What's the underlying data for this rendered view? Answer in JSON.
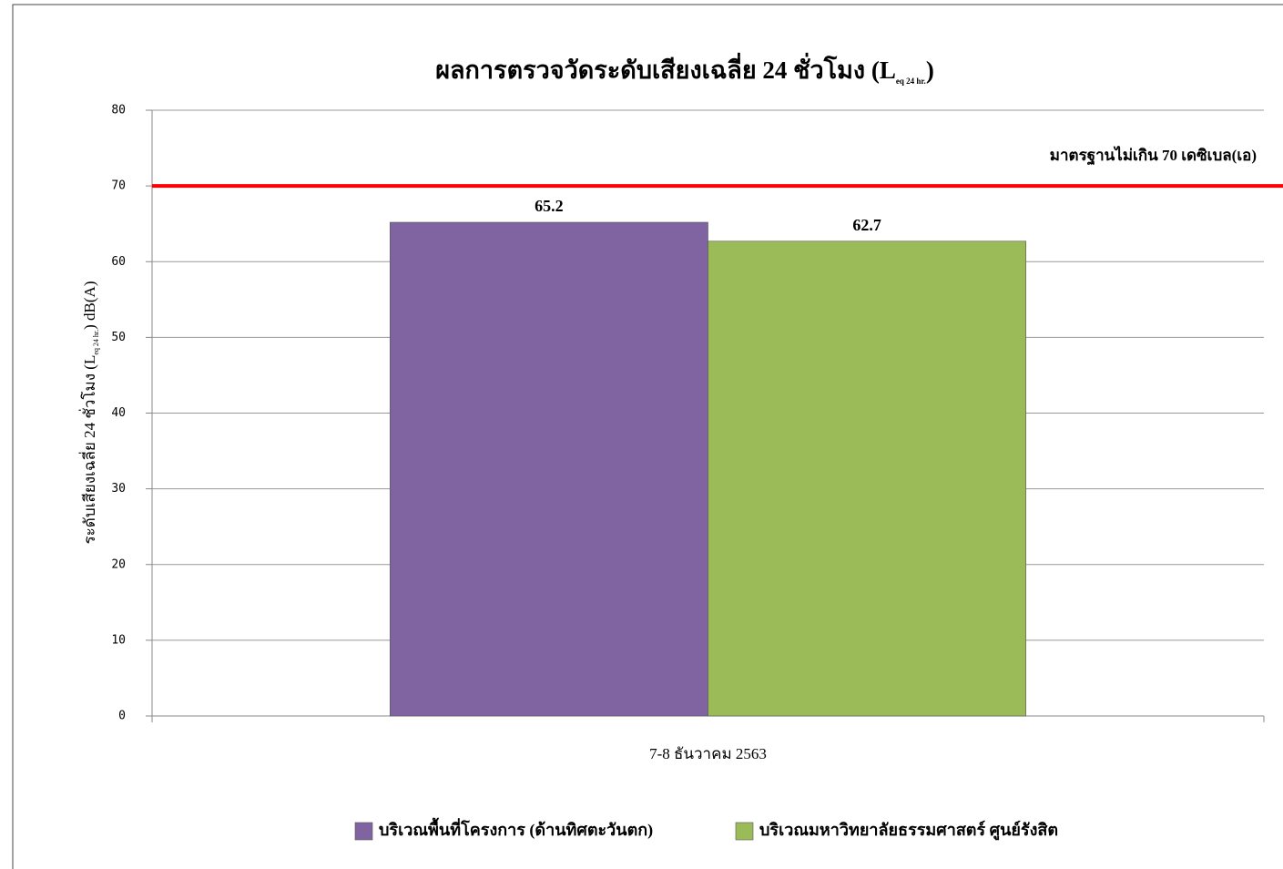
{
  "chart_data": {
    "type": "bar",
    "title": "ผลการตรวจวัดระดับเสียงเฉลี่ย 24 ชั่วโมง (L",
    "title_subscript": "eq 24 hr.",
    "title_end": ")",
    "ylabel": "ระดับเสียงเฉลี่ย 24 ชั่วโมง (L",
    "ylabel_subscript": "eq 24 hr.",
    "ylabel_end": ") dB(A)",
    "categories": [
      "7-8 ธันวาคม 2563"
    ],
    "series": [
      {
        "name": "บริเวณพื้นที่โครงการ (ด้านทิศตะวันตก)",
        "color": "#8064a2",
        "values": [
          65.2
        ]
      },
      {
        "name": "บริเวณมหาวิทยาลัยธรรมศาสตร์ ศูนย์รังสิต",
        "color": "#9bbb59",
        "values": [
          62.7
        ]
      }
    ],
    "ylim": [
      0,
      80
    ],
    "yticks": [
      0,
      10,
      20,
      30,
      40,
      50,
      60,
      70,
      80
    ],
    "grid": true,
    "reference_line": {
      "value": 70,
      "label": "มาตรฐานไม่เกิน 70 เดซิเบล(เอ)",
      "color": "#ff0000"
    },
    "legend": "bottom"
  }
}
